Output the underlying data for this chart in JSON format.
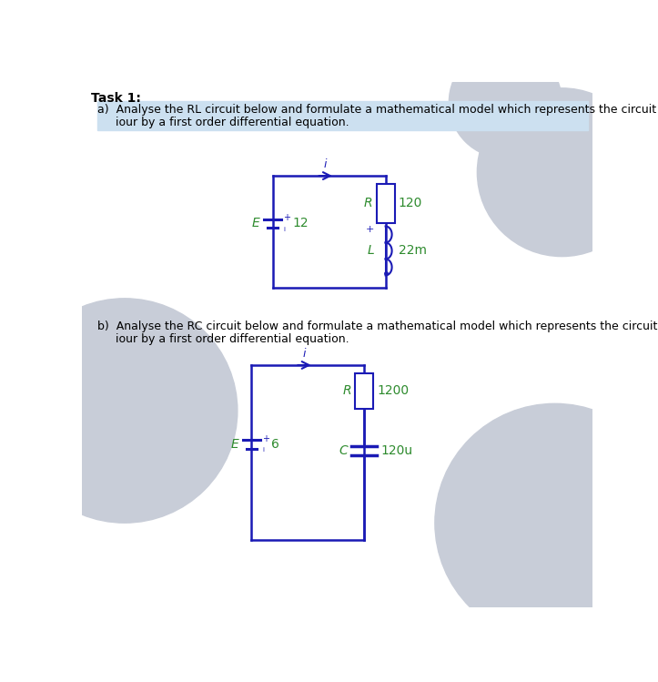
{
  "bg_color": "#ffffff",
  "circuit_color": "#1a1ab5",
  "label_color": "#2e8b2e",
  "text_color": "#000000",
  "title": "Task 1:",
  "part_a_line1": "a)  Analyse the RL circuit below and formulate a mathematical model which represents the circuit behav-",
  "part_a_line2": "     iour by a first order differential equation.",
  "part_b_line1": "b)  Analyse the RC circuit below and formulate a mathematical model which represents the circuit behav-",
  "part_b_line2": "     iour by a first order differential equation.",
  "rl_E_label": "E",
  "rl_E_value": "12",
  "rl_R_label": "R",
  "rl_R_value": "120",
  "rl_L_label": "L",
  "rl_L_value": "22m",
  "rl_i_label": "i",
  "rc_E_label": "E",
  "rc_E_value": "6",
  "rc_R_label": "R",
  "rc_R_value": "1200",
  "rc_C_label": "C",
  "rc_C_value": "120u",
  "rc_i_label": "i",
  "gray_color": "#c8cdd8"
}
